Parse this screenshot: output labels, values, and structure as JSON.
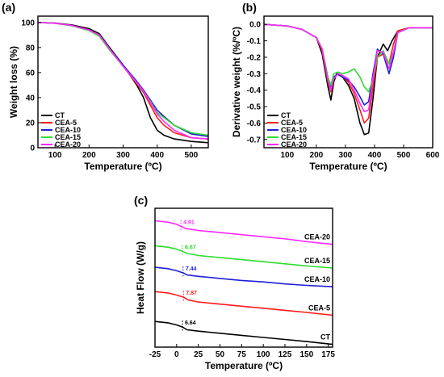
{
  "colors": {
    "CT": "#000000",
    "CEA-5": "#ff1a1a",
    "CEA-10": "#1f1fd6",
    "CEA-15": "#2fdb2f",
    "CEA-20": "#ff2aff"
  },
  "chart_data": [
    {
      "panel": "(a)",
      "type": "line",
      "xlabel": "Temperature (ºC)",
      "ylabel": "Weight loss (%)",
      "xlim": [
        50,
        550
      ],
      "ylim": [
        0,
        105
      ],
      "xticks": [
        100,
        200,
        300,
        400,
        500
      ],
      "yticks": [
        0,
        20,
        40,
        60,
        80,
        100
      ],
      "legend_position": "bottom-left",
      "series": [
        {
          "name": "CT",
          "x": [
            50,
            100,
            150,
            200,
            230,
            260,
            300,
            340,
            360,
            380,
            400,
            420,
            450,
            500,
            550
          ],
          "y": [
            100,
            99.5,
            98,
            95,
            91,
            80,
            66,
            50,
            40,
            24,
            14,
            10,
            7,
            5,
            4
          ]
        },
        {
          "name": "CEA-5",
          "x": [
            50,
            100,
            150,
            200,
            230,
            260,
            300,
            340,
            360,
            380,
            400,
            420,
            450,
            500,
            550
          ],
          "y": [
            100,
            99.3,
            97.5,
            94,
            90,
            79,
            65,
            51,
            44,
            34,
            24,
            18,
            12,
            8,
            7
          ]
        },
        {
          "name": "CEA-10",
          "x": [
            50,
            100,
            150,
            200,
            230,
            260,
            300,
            340,
            360,
            380,
            400,
            420,
            450,
            500,
            550
          ],
          "y": [
            100,
            99.3,
            97.5,
            94,
            90,
            79,
            66,
            53,
            46,
            38,
            30,
            25,
            18,
            11,
            9
          ]
        },
        {
          "name": "CEA-15",
          "x": [
            50,
            100,
            150,
            200,
            230,
            260,
            300,
            340,
            360,
            380,
            400,
            420,
            450,
            500,
            550
          ],
          "y": [
            100,
            99.3,
            97.3,
            93.5,
            89,
            78,
            65,
            52,
            45,
            37,
            28,
            24,
            18,
            12,
            10
          ]
        },
        {
          "name": "CEA-20",
          "x": [
            50,
            100,
            150,
            200,
            230,
            260,
            300,
            340,
            360,
            380,
            400,
            420,
            450,
            500,
            550
          ],
          "y": [
            100,
            99.3,
            97.5,
            94,
            90,
            79,
            65,
            52,
            45,
            36,
            27,
            21,
            14,
            8,
            7
          ]
        }
      ]
    },
    {
      "panel": "(b)",
      "type": "line",
      "xlabel": "Temperature (ºC)",
      "ylabel": "Derivative weight (%/ºC)",
      "xlim": [
        20,
        600
      ],
      "ylim": [
        -0.75,
        0.05
      ],
      "xticks": [
        100,
        200,
        300,
        400,
        500,
        600
      ],
      "yticks": [
        0.0,
        -0.1,
        -0.2,
        -0.3,
        -0.4,
        -0.5,
        -0.6,
        -0.7
      ],
      "legend_position": "bottom-left",
      "series": [
        {
          "name": "CT",
          "x": [
            20,
            60,
            100,
            150,
            200,
            220,
            240,
            250,
            260,
            270,
            290,
            310,
            330,
            350,
            365,
            380,
            395,
            410,
            430,
            445,
            460,
            480,
            520,
            600
          ],
          "y": [
            0,
            -0.005,
            -0.01,
            -0.03,
            -0.08,
            -0.18,
            -0.38,
            -0.46,
            -0.35,
            -0.3,
            -0.32,
            -0.37,
            -0.45,
            -0.6,
            -0.67,
            -0.66,
            -0.45,
            -0.2,
            -0.12,
            -0.16,
            -0.1,
            -0.04,
            -0.02,
            -0.02
          ]
        },
        {
          "name": "CEA-5",
          "x": [
            20,
            60,
            100,
            150,
            200,
            220,
            240,
            250,
            260,
            275,
            290,
            310,
            330,
            350,
            365,
            380,
            395,
            410,
            430,
            450,
            465,
            480,
            520,
            600
          ],
          "y": [
            0,
            -0.005,
            -0.01,
            -0.03,
            -0.08,
            -0.16,
            -0.35,
            -0.41,
            -0.33,
            -0.3,
            -0.32,
            -0.35,
            -0.42,
            -0.52,
            -0.6,
            -0.57,
            -0.38,
            -0.2,
            -0.18,
            -0.24,
            -0.12,
            -0.04,
            -0.02,
            -0.02
          ]
        },
        {
          "name": "CEA-10",
          "x": [
            20,
            60,
            100,
            150,
            200,
            220,
            240,
            250,
            260,
            275,
            290,
            310,
            330,
            350,
            365,
            380,
            395,
            410,
            430,
            450,
            465,
            480,
            520,
            600
          ],
          "y": [
            0,
            -0.005,
            -0.01,
            -0.03,
            -0.08,
            -0.15,
            -0.33,
            -0.38,
            -0.32,
            -0.3,
            -0.32,
            -0.34,
            -0.38,
            -0.44,
            -0.49,
            -0.47,
            -0.3,
            -0.15,
            -0.18,
            -0.3,
            -0.2,
            -0.05,
            -0.02,
            -0.02
          ]
        },
        {
          "name": "CEA-15",
          "x": [
            20,
            60,
            100,
            150,
            200,
            220,
            240,
            250,
            260,
            275,
            290,
            310,
            330,
            350,
            365,
            380,
            395,
            410,
            430,
            450,
            465,
            480,
            520,
            600
          ],
          "y": [
            0,
            -0.005,
            -0.01,
            -0.03,
            -0.08,
            -0.15,
            -0.32,
            -0.37,
            -0.3,
            -0.29,
            -0.3,
            -0.29,
            -0.27,
            -0.32,
            -0.38,
            -0.41,
            -0.33,
            -0.2,
            -0.16,
            -0.24,
            -0.17,
            -0.05,
            -0.02,
            -0.02
          ]
        },
        {
          "name": "CEA-20",
          "x": [
            20,
            60,
            100,
            150,
            200,
            220,
            240,
            250,
            260,
            275,
            290,
            310,
            330,
            350,
            365,
            380,
            395,
            410,
            430,
            450,
            465,
            480,
            520,
            600
          ],
          "y": [
            0,
            -0.005,
            -0.01,
            -0.03,
            -0.08,
            -0.15,
            -0.34,
            -0.4,
            -0.33,
            -0.3,
            -0.31,
            -0.33,
            -0.4,
            -0.48,
            -0.53,
            -0.52,
            -0.33,
            -0.16,
            -0.17,
            -0.27,
            -0.17,
            -0.05,
            -0.02,
            -0.02
          ]
        }
      ]
    },
    {
      "panel": "(c)",
      "type": "line",
      "xlabel": "Temperature (ºC)",
      "ylabel": "Heat Flow (W/g)",
      "xlim": [
        -25,
        180
      ],
      "ylim": [
        0,
        10
      ],
      "xticks": [
        -25,
        0,
        25,
        50,
        75,
        100,
        125,
        150,
        175
      ],
      "yticks": [],
      "series": [
        {
          "name": "CEA-20",
          "tg": "4.91",
          "x": [
            -25,
            -10,
            0,
            4.91,
            10,
            25,
            50,
            75,
            100,
            125,
            150,
            180
          ],
          "y": [
            9.1,
            9.0,
            8.85,
            8.7,
            8.55,
            8.4,
            8.25,
            8.1,
            7.95,
            7.8,
            7.6,
            7.4
          ]
        },
        {
          "name": "CEA-15",
          "tg": "6.67",
          "x": [
            -25,
            -10,
            0,
            6.67,
            12,
            25,
            50,
            75,
            100,
            125,
            150,
            180
          ],
          "y": [
            7.3,
            7.2,
            7.05,
            6.9,
            6.75,
            6.6,
            6.45,
            6.3,
            6.15,
            6.0,
            5.85,
            5.7
          ]
        },
        {
          "name": "CEA-10",
          "tg": "7.44",
          "x": [
            -25,
            -10,
            0,
            7.44,
            12,
            25,
            50,
            75,
            100,
            125,
            150,
            180
          ],
          "y": [
            5.75,
            5.65,
            5.5,
            5.35,
            5.2,
            5.1,
            4.95,
            4.8,
            4.7,
            4.55,
            4.45,
            4.35
          ]
        },
        {
          "name": "CEA-5",
          "tg": "7.87",
          "x": [
            -25,
            -10,
            0,
            7.87,
            13,
            25,
            50,
            75,
            100,
            125,
            150,
            180
          ],
          "y": [
            4.0,
            3.9,
            3.75,
            3.6,
            3.4,
            3.25,
            3.1,
            2.95,
            2.8,
            2.65,
            2.5,
            2.3
          ]
        },
        {
          "name": "CT",
          "tg": "6.64",
          "x": [
            -25,
            -10,
            0,
            6.64,
            12,
            25,
            50,
            75,
            100,
            125,
            150,
            180
          ],
          "y": [
            1.85,
            1.75,
            1.6,
            1.45,
            1.25,
            1.15,
            1.0,
            0.85,
            0.7,
            0.55,
            0.4,
            0.2
          ]
        }
      ]
    }
  ]
}
